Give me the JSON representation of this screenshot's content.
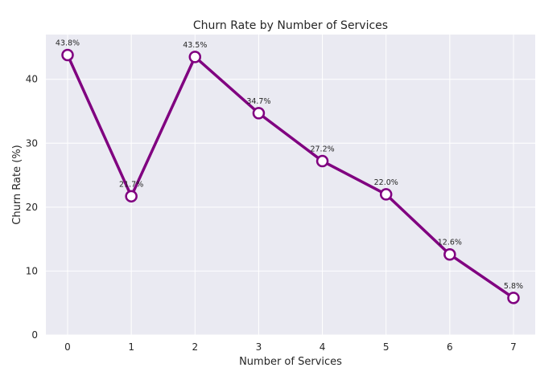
{
  "chart_data": {
    "type": "line",
    "title": "Churn Rate by Number of Services",
    "xlabel": "Number of Services",
    "ylabel": "Churn Rate (%)",
    "x": [
      0,
      1,
      2,
      3,
      4,
      5,
      6,
      7
    ],
    "xticks": [
      "0",
      "1",
      "2",
      "3",
      "4",
      "5",
      "6",
      "7"
    ],
    "yticks": [
      "0",
      "10",
      "20",
      "30",
      "40"
    ],
    "ylim": [
      0,
      47
    ],
    "series": [
      {
        "values": [
          43.8,
          21.7,
          43.5,
          34.7,
          27.2,
          22.0,
          12.6,
          5.8
        ],
        "labels": [
          "43.8%",
          "21.7%",
          "43.5%",
          "34.7%",
          "27.2%",
          "22.0%",
          "12.6%",
          "5.8%"
        ]
      }
    ],
    "grid": true,
    "colors": {
      "line": "#800080",
      "background": "#eaeaf2",
      "grid": "#ffffff",
      "marker_fill": "#ffffff"
    }
  }
}
